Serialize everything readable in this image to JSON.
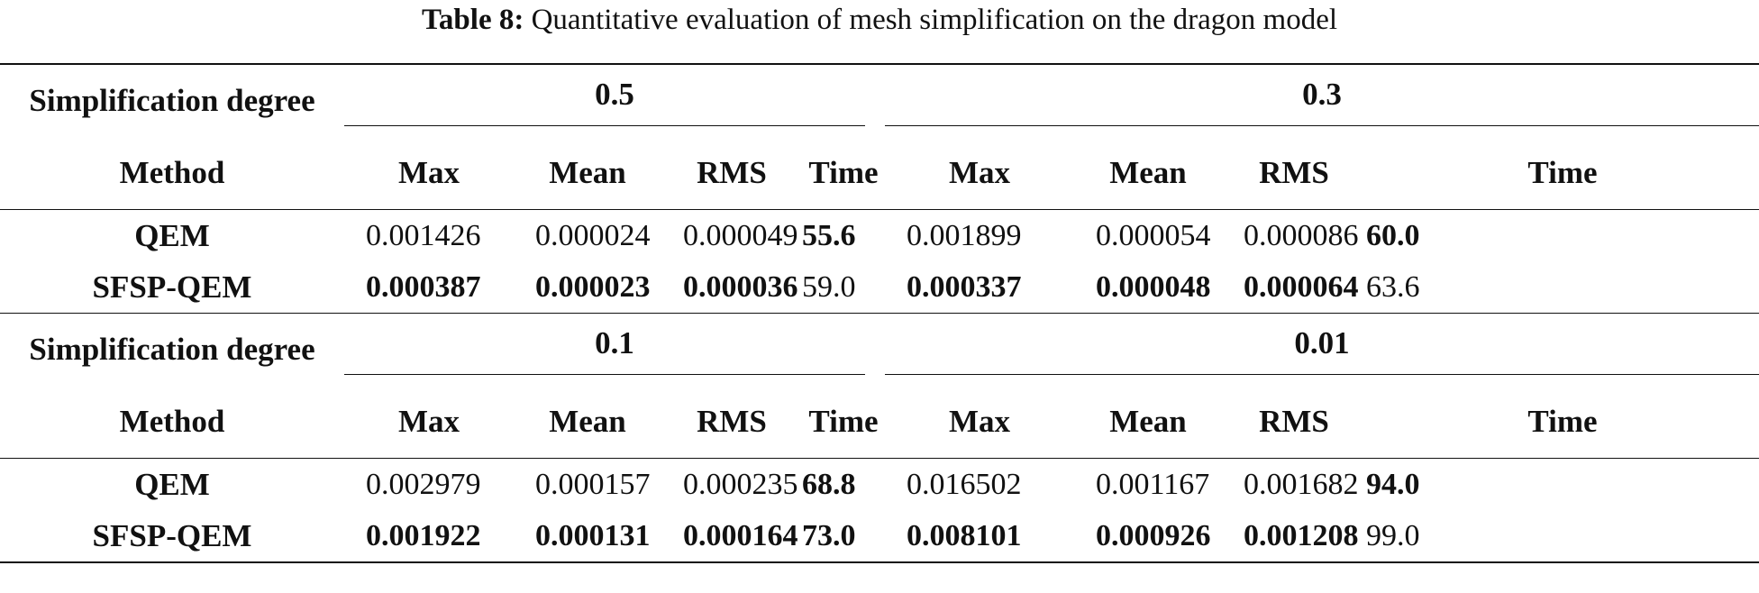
{
  "caption": {
    "label": "Table 8:",
    "text": "Quantitative evaluation of mesh simplification on the dragon model"
  },
  "table": {
    "row_label_degree": "Simplification degree",
    "row_label_method": "Method",
    "metric_headers": [
      "Max",
      "Mean",
      "RMS",
      "Time"
    ],
    "blocks": [
      {
        "degrees": [
          "0.5",
          "0.3"
        ],
        "rows": [
          {
            "method": "QEM",
            "values": [
              {
                "text": "0.001426",
                "bold": false
              },
              {
                "text": "0.000024",
                "bold": false
              },
              {
                "text": "0.000049",
                "bold": false
              },
              {
                "text": "55.6",
                "bold": true
              },
              {
                "text": "0.001899",
                "bold": false
              },
              {
                "text": "0.000054",
                "bold": false
              },
              {
                "text": "0.000086",
                "bold": false
              },
              {
                "text": "60.0",
                "bold": true
              }
            ]
          },
          {
            "method": "SFSP-QEM",
            "values": [
              {
                "text": "0.000387",
                "bold": true
              },
              {
                "text": "0.000023",
                "bold": true
              },
              {
                "text": "0.000036",
                "bold": true
              },
              {
                "text": "59.0",
                "bold": false
              },
              {
                "text": "0.000337",
                "bold": true
              },
              {
                "text": "0.000048",
                "bold": true
              },
              {
                "text": "0.000064",
                "bold": true
              },
              {
                "text": "63.6",
                "bold": false
              }
            ]
          }
        ]
      },
      {
        "degrees": [
          "0.1",
          "0.01"
        ],
        "rows": [
          {
            "method": "QEM",
            "values": [
              {
                "text": "0.002979",
                "bold": false
              },
              {
                "text": "0.000157",
                "bold": false
              },
              {
                "text": "0.000235",
                "bold": false
              },
              {
                "text": "68.8",
                "bold": true
              },
              {
                "text": "0.016502",
                "bold": false
              },
              {
                "text": "0.001167",
                "bold": false
              },
              {
                "text": "0.001682",
                "bold": false
              },
              {
                "text": "94.0",
                "bold": true
              }
            ]
          },
          {
            "method": "SFSP-QEM",
            "values": [
              {
                "text": "0.001922",
                "bold": true
              },
              {
                "text": "0.000131",
                "bold": true
              },
              {
                "text": "0.000164",
                "bold": true
              },
              {
                "text": "73.0",
                "bold": true
              },
              {
                "text": "0.008101",
                "bold": true
              },
              {
                "text": "0.000926",
                "bold": true
              },
              {
                "text": "0.001208",
                "bold": true
              },
              {
                "text": "99.0",
                "bold": false
              }
            ]
          }
        ]
      }
    ]
  }
}
